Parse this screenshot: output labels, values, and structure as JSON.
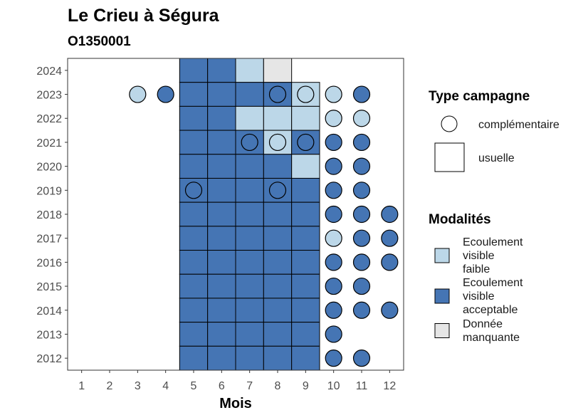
{
  "chart_data": {
    "type": "heatmap",
    "title": "Le Crieu à Ségura",
    "subtitle": "O1350001",
    "xlabel": "Mois",
    "ylabel": "",
    "x_ticks": [
      1,
      2,
      3,
      4,
      5,
      6,
      7,
      8,
      9,
      10,
      11,
      12
    ],
    "y_ticks": [
      2012,
      2013,
      2014,
      2015,
      2016,
      2017,
      2018,
      2019,
      2020,
      2021,
      2022,
      2023,
      2024
    ],
    "xlim": [
      0.5,
      12.5
    ],
    "ylim": [
      2011.5,
      2024.5
    ],
    "grid": false,
    "colors": {
      "faible": "#bcd7e8",
      "acceptable": "#4575b4",
      "manquante": "#e6e6e6"
    },
    "legend_type": {
      "title": "Type campagne",
      "entries": [
        {
          "shape": "circle",
          "label": "complémentaire"
        },
        {
          "shape": "square",
          "label": "usuelle"
        }
      ]
    },
    "legend_modalites": {
      "title": "Modalités",
      "entries": [
        {
          "key": "faible",
          "label_lines": [
            "Ecoulement",
            "visible",
            "faible"
          ]
        },
        {
          "key": "acceptable",
          "label_lines": [
            "Ecoulement",
            "visible",
            "acceptable"
          ]
        },
        {
          "key": "manquante",
          "label_lines": [
            "Donnée",
            "manquante"
          ]
        }
      ]
    },
    "points": [
      {
        "year": 2024,
        "month": 5,
        "type": "usuelle",
        "mod": "acceptable"
      },
      {
        "year": 2024,
        "month": 6,
        "type": "usuelle",
        "mod": "acceptable"
      },
      {
        "year": 2024,
        "month": 7,
        "type": "usuelle",
        "mod": "faible"
      },
      {
        "year": 2024,
        "month": 8,
        "type": "usuelle",
        "mod": "manquante"
      },
      {
        "year": 2023,
        "month": 3,
        "type": "complementaire",
        "mod": "faible"
      },
      {
        "year": 2023,
        "month": 4,
        "type": "complementaire",
        "mod": "acceptable"
      },
      {
        "year": 2023,
        "month": 5,
        "type": "usuelle",
        "mod": "acceptable"
      },
      {
        "year": 2023,
        "month": 6,
        "type": "usuelle",
        "mod": "acceptable"
      },
      {
        "year": 2023,
        "month": 7,
        "type": "usuelle",
        "mod": "acceptable"
      },
      {
        "year": 2023,
        "month": 8,
        "type": "usuelle",
        "mod": "acceptable"
      },
      {
        "year": 2023,
        "month": 8,
        "type": "complementaire",
        "mod": "acceptable"
      },
      {
        "year": 2023,
        "month": 9,
        "type": "usuelle",
        "mod": "faible"
      },
      {
        "year": 2023,
        "month": 9,
        "type": "complementaire",
        "mod": "faible"
      },
      {
        "year": 2023,
        "month": 10,
        "type": "complementaire",
        "mod": "faible"
      },
      {
        "year": 2023,
        "month": 11,
        "type": "complementaire",
        "mod": "acceptable"
      },
      {
        "year": 2022,
        "month": 5,
        "type": "usuelle",
        "mod": "acceptable"
      },
      {
        "year": 2022,
        "month": 6,
        "type": "usuelle",
        "mod": "acceptable"
      },
      {
        "year": 2022,
        "month": 7,
        "type": "usuelle",
        "mod": "faible"
      },
      {
        "year": 2022,
        "month": 8,
        "type": "usuelle",
        "mod": "faible"
      },
      {
        "year": 2022,
        "month": 9,
        "type": "usuelle",
        "mod": "faible"
      },
      {
        "year": 2022,
        "month": 10,
        "type": "complementaire",
        "mod": "faible"
      },
      {
        "year": 2022,
        "month": 11,
        "type": "complementaire",
        "mod": "faible"
      },
      {
        "year": 2021,
        "month": 5,
        "type": "usuelle",
        "mod": "acceptable"
      },
      {
        "year": 2021,
        "month": 6,
        "type": "usuelle",
        "mod": "acceptable"
      },
      {
        "year": 2021,
        "month": 7,
        "type": "usuelle",
        "mod": "acceptable"
      },
      {
        "year": 2021,
        "month": 7,
        "type": "complementaire",
        "mod": "acceptable"
      },
      {
        "year": 2021,
        "month": 8,
        "type": "usuelle",
        "mod": "faible"
      },
      {
        "year": 2021,
        "month": 8,
        "type": "complementaire",
        "mod": "faible"
      },
      {
        "year": 2021,
        "month": 9,
        "type": "usuelle",
        "mod": "acceptable"
      },
      {
        "year": 2021,
        "month": 9,
        "type": "complementaire",
        "mod": "acceptable"
      },
      {
        "year": 2021,
        "month": 10,
        "type": "complementaire",
        "mod": "acceptable"
      },
      {
        "year": 2021,
        "month": 11,
        "type": "complementaire",
        "mod": "acceptable"
      },
      {
        "year": 2020,
        "month": 5,
        "type": "usuelle",
        "mod": "acceptable"
      },
      {
        "year": 2020,
        "month": 6,
        "type": "usuelle",
        "mod": "acceptable"
      },
      {
        "year": 2020,
        "month": 7,
        "type": "usuelle",
        "mod": "acceptable"
      },
      {
        "year": 2020,
        "month": 8,
        "type": "usuelle",
        "mod": "acceptable"
      },
      {
        "year": 2020,
        "month": 9,
        "type": "usuelle",
        "mod": "faible"
      },
      {
        "year": 2020,
        "month": 10,
        "type": "complementaire",
        "mod": "acceptable"
      },
      {
        "year": 2020,
        "month": 11,
        "type": "complementaire",
        "mod": "acceptable"
      },
      {
        "year": 2019,
        "month": 5,
        "type": "usuelle",
        "mod": "acceptable"
      },
      {
        "year": 2019,
        "month": 5,
        "type": "complementaire",
        "mod": "acceptable"
      },
      {
        "year": 2019,
        "month": 6,
        "type": "usuelle",
        "mod": "acceptable"
      },
      {
        "year": 2019,
        "month": 7,
        "type": "usuelle",
        "mod": "acceptable"
      },
      {
        "year": 2019,
        "month": 8,
        "type": "usuelle",
        "mod": "acceptable"
      },
      {
        "year": 2019,
        "month": 8,
        "type": "complementaire",
        "mod": "acceptable"
      },
      {
        "year": 2019,
        "month": 9,
        "type": "usuelle",
        "mod": "acceptable"
      },
      {
        "year": 2019,
        "month": 10,
        "type": "complementaire",
        "mod": "acceptable"
      },
      {
        "year": 2019,
        "month": 11,
        "type": "complementaire",
        "mod": "acceptable"
      },
      {
        "year": 2018,
        "month": 5,
        "type": "usuelle",
        "mod": "acceptable"
      },
      {
        "year": 2018,
        "month": 6,
        "type": "usuelle",
        "mod": "acceptable"
      },
      {
        "year": 2018,
        "month": 7,
        "type": "usuelle",
        "mod": "acceptable"
      },
      {
        "year": 2018,
        "month": 8,
        "type": "usuelle",
        "mod": "acceptable"
      },
      {
        "year": 2018,
        "month": 9,
        "type": "usuelle",
        "mod": "acceptable"
      },
      {
        "year": 2018,
        "month": 10,
        "type": "complementaire",
        "mod": "acceptable"
      },
      {
        "year": 2018,
        "month": 11,
        "type": "complementaire",
        "mod": "acceptable"
      },
      {
        "year": 2018,
        "month": 12,
        "type": "complementaire",
        "mod": "acceptable"
      },
      {
        "year": 2017,
        "month": 5,
        "type": "usuelle",
        "mod": "acceptable"
      },
      {
        "year": 2017,
        "month": 6,
        "type": "usuelle",
        "mod": "acceptable"
      },
      {
        "year": 2017,
        "month": 7,
        "type": "usuelle",
        "mod": "acceptable"
      },
      {
        "year": 2017,
        "month": 8,
        "type": "usuelle",
        "mod": "acceptable"
      },
      {
        "year": 2017,
        "month": 9,
        "type": "usuelle",
        "mod": "acceptable"
      },
      {
        "year": 2017,
        "month": 10,
        "type": "complementaire",
        "mod": "faible"
      },
      {
        "year": 2017,
        "month": 11,
        "type": "complementaire",
        "mod": "acceptable"
      },
      {
        "year": 2017,
        "month": 12,
        "type": "complementaire",
        "mod": "acceptable"
      },
      {
        "year": 2016,
        "month": 5,
        "type": "usuelle",
        "mod": "acceptable"
      },
      {
        "year": 2016,
        "month": 6,
        "type": "usuelle",
        "mod": "acceptable"
      },
      {
        "year": 2016,
        "month": 7,
        "type": "usuelle",
        "mod": "acceptable"
      },
      {
        "year": 2016,
        "month": 8,
        "type": "usuelle",
        "mod": "acceptable"
      },
      {
        "year": 2016,
        "month": 9,
        "type": "usuelle",
        "mod": "acceptable"
      },
      {
        "year": 2016,
        "month": 10,
        "type": "complementaire",
        "mod": "acceptable"
      },
      {
        "year": 2016,
        "month": 11,
        "type": "complementaire",
        "mod": "acceptable"
      },
      {
        "year": 2016,
        "month": 12,
        "type": "complementaire",
        "mod": "acceptable"
      },
      {
        "year": 2015,
        "month": 5,
        "type": "usuelle",
        "mod": "acceptable"
      },
      {
        "year": 2015,
        "month": 6,
        "type": "usuelle",
        "mod": "acceptable"
      },
      {
        "year": 2015,
        "month": 7,
        "type": "usuelle",
        "mod": "acceptable"
      },
      {
        "year": 2015,
        "month": 8,
        "type": "usuelle",
        "mod": "acceptable"
      },
      {
        "year": 2015,
        "month": 9,
        "type": "usuelle",
        "mod": "acceptable"
      },
      {
        "year": 2015,
        "month": 10,
        "type": "complementaire",
        "mod": "acceptable"
      },
      {
        "year": 2015,
        "month": 11,
        "type": "complementaire",
        "mod": "acceptable"
      },
      {
        "year": 2014,
        "month": 5,
        "type": "usuelle",
        "mod": "acceptable"
      },
      {
        "year": 2014,
        "month": 6,
        "type": "usuelle",
        "mod": "acceptable"
      },
      {
        "year": 2014,
        "month": 7,
        "type": "usuelle",
        "mod": "acceptable"
      },
      {
        "year": 2014,
        "month": 8,
        "type": "usuelle",
        "mod": "acceptable"
      },
      {
        "year": 2014,
        "month": 9,
        "type": "usuelle",
        "mod": "acceptable"
      },
      {
        "year": 2014,
        "month": 10,
        "type": "complementaire",
        "mod": "acceptable"
      },
      {
        "year": 2014,
        "month": 11,
        "type": "complementaire",
        "mod": "acceptable"
      },
      {
        "year": 2014,
        "month": 12,
        "type": "complementaire",
        "mod": "acceptable"
      },
      {
        "year": 2013,
        "month": 5,
        "type": "usuelle",
        "mod": "acceptable"
      },
      {
        "year": 2013,
        "month": 6,
        "type": "usuelle",
        "mod": "acceptable"
      },
      {
        "year": 2013,
        "month": 7,
        "type": "usuelle",
        "mod": "acceptable"
      },
      {
        "year": 2013,
        "month": 8,
        "type": "usuelle",
        "mod": "acceptable"
      },
      {
        "year": 2013,
        "month": 9,
        "type": "usuelle",
        "mod": "acceptable"
      },
      {
        "year": 2013,
        "month": 10,
        "type": "complementaire",
        "mod": "acceptable"
      },
      {
        "year": 2012,
        "month": 5,
        "type": "usuelle",
        "mod": "acceptable"
      },
      {
        "year": 2012,
        "month": 6,
        "type": "usuelle",
        "mod": "acceptable"
      },
      {
        "year": 2012,
        "month": 7,
        "type": "usuelle",
        "mod": "acceptable"
      },
      {
        "year": 2012,
        "month": 8,
        "type": "usuelle",
        "mod": "acceptable"
      },
      {
        "year": 2012,
        "month": 9,
        "type": "usuelle",
        "mod": "acceptable"
      },
      {
        "year": 2012,
        "month": 10,
        "type": "complementaire",
        "mod": "acceptable"
      },
      {
        "year": 2012,
        "month": 11,
        "type": "complementaire",
        "mod": "acceptable"
      }
    ]
  }
}
